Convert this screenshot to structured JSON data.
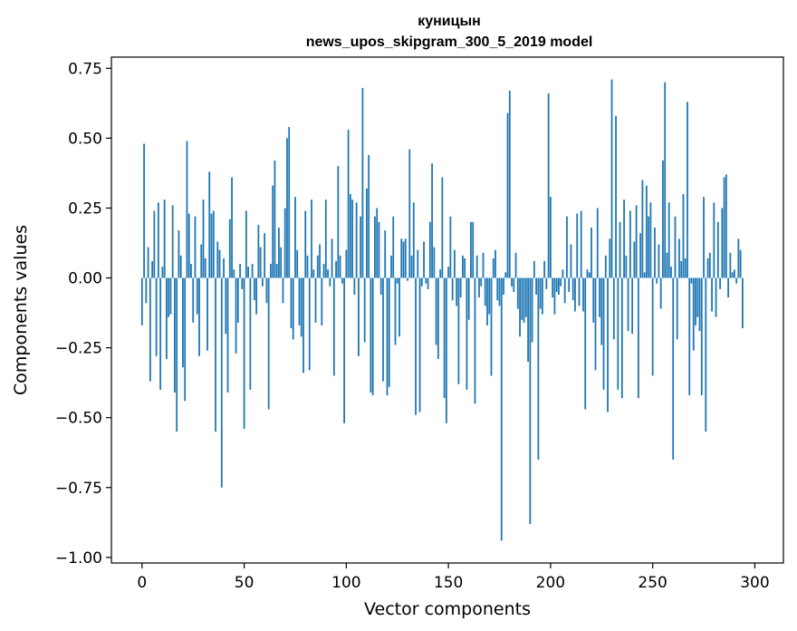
{
  "chart_data": {
    "type": "bar",
    "title": "куницын",
    "subtitle": "news_upos_skipgram_300_5_2019 model",
    "xlabel": "Vector components",
    "ylabel": "Components values",
    "xlim": [
      -15,
      314
    ],
    "ylim": [
      -1.02,
      0.79
    ],
    "xticks": [
      0,
      50,
      100,
      150,
      200,
      250,
      300
    ],
    "yticks": [
      0.75,
      0.5,
      0.25,
      0.0,
      -0.25,
      -0.5,
      -0.75,
      -1.0
    ],
    "xtick_labels": [
      "0",
      "50",
      "100",
      "150",
      "200",
      "250",
      "300"
    ],
    "ytick_labels": [
      "0.75",
      "0.50",
      "0.25",
      "0.00",
      "−0.25",
      "−0.50",
      "−0.75",
      "−1.00"
    ],
    "color": "#1f77b4",
    "values": [
      -0.17,
      0.48,
      -0.09,
      0.11,
      -0.37,
      0.06,
      0.24,
      -0.28,
      0.27,
      -0.4,
      0.04,
      0.28,
      -0.29,
      -0.14,
      -0.13,
      0.26,
      -0.41,
      -0.55,
      0.17,
      0.08,
      -0.32,
      -0.44,
      0.49,
      0.23,
      0.05,
      -0.16,
      0.22,
      -0.13,
      -0.28,
      0.12,
      0.28,
      0.07,
      -0.26,
      0.38,
      0.23,
      0.24,
      -0.55,
      0.13,
      0.1,
      -0.75,
      0.07,
      -0.2,
      -0.41,
      0.21,
      0.36,
      0.03,
      -0.27,
      -0.16,
      0.05,
      -0.04,
      -0.54,
      0.24,
      0.04,
      -0.4,
      0.05,
      -0.08,
      -0.13,
      0.19,
      0.11,
      -0.03,
      0.16,
      -0.09,
      -0.47,
      0.05,
      0.33,
      0.42,
      0.05,
      0.18,
      0.11,
      -0.09,
      0.25,
      0.5,
      0.54,
      -0.18,
      -0.22,
      0.29,
      0.1,
      -0.17,
      -0.21,
      -0.34,
      0.24,
      0.08,
      -0.33,
      0.28,
      0.03,
      -0.16,
      0.08,
      0.12,
      -0.17,
      0.05,
      0.28,
      0.03,
      -0.03,
      0.14,
      -0.35,
      0.06,
      0.4,
      0.08,
      -0.02,
      -0.52,
      0.1,
      0.53,
      0.3,
      0.28,
      -0.06,
      0.27,
      -0.28,
      0.22,
      0.68,
      -0.23,
      0.32,
      0.44,
      -0.41,
      -0.42,
      0.22,
      0.25,
      0.2,
      -0.06,
      -0.37,
      0.17,
      -0.42,
      -0.39,
      0.08,
      0.22,
      -0.24,
      -0.02,
      -0.21,
      0.14,
      0.13,
      0.14,
      -0.01,
      0.46,
      0.08,
      0.27,
      -0.49,
      0.1,
      -0.48,
      -0.03,
      0.13,
      -0.02,
      -0.04,
      0.2,
      0.41,
      0.11,
      -0.24,
      -0.29,
      0.03,
      0.36,
      -0.43,
      -0.52,
      0.04,
      0.22,
      -0.08,
      0.1,
      -0.1,
      -0.38,
      -0.07,
      0.08,
      0.07,
      -0.4,
      -0.15,
      0.2,
      0.2,
      -0.45,
      0.08,
      -0.07,
      -0.03,
      0.09,
      -0.1,
      -0.17,
      -0.13,
      -0.35,
      0.07,
      0.1,
      -0.08,
      -0.1,
      -0.94,
      -0.06,
      0.02,
      0.59,
      0.67,
      -0.03,
      -0.05,
      0.09,
      -0.11,
      -0.21,
      -0.15,
      -0.16,
      -0.14,
      -0.3,
      -0.88,
      -0.23,
      0.06,
      -0.06,
      -0.65,
      -0.11,
      -0.13,
      0.06,
      -0.04,
      0.66,
      0.29,
      -0.07,
      -0.13,
      -0.05,
      -0.06,
      -0.03,
      0.03,
      -0.09,
      0.22,
      -0.05,
      0.12,
      -0.08,
      -0.12,
      0.23,
      -0.1,
      0.24,
      -0.12,
      -0.47,
      0.03,
      0.02,
      0.18,
      -0.16,
      -0.33,
      0.25,
      -0.14,
      -0.24,
      -0.4,
      0.08,
      -0.48,
      0.14,
      0.71,
      -0.22,
      0.58,
      -0.4,
      0.2,
      -0.43,
      0.28,
      0.08,
      -0.19,
      0.24,
      -0.2,
      0.13,
      0.26,
      -0.43,
      0.16,
      0.35,
      0.02,
      0.33,
      0.22,
      0.27,
      -0.35,
      0.18,
      -0.02,
      0.12,
      -0.11,
      0.42,
      0.7,
      0.09,
      0.27,
      0.04,
      -0.65,
      0.22,
      -0.22,
      0.14,
      0.06,
      0.3,
      0.07,
      0.63,
      -0.42,
      -0.02,
      -0.26,
      -0.17,
      -0.14,
      -0.19,
      -0.42,
      0.29,
      -0.55,
      0.07,
      0.09,
      -0.12,
      0.27,
      -0.14,
      0.2,
      -0.04,
      0.25,
      0.36,
      0.37,
      -0.07,
      0.09,
      0.02,
      0.03,
      -0.02,
      0.14,
      0.1,
      -0.18
    ]
  }
}
